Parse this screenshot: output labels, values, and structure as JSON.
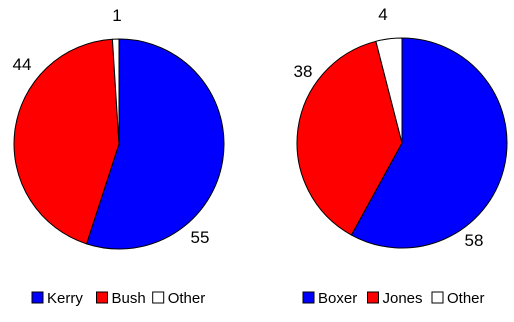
{
  "chart_data": [
    {
      "type": "pie",
      "series": [
        {
          "name": "Kerry",
          "value": 55,
          "color": "#0000ff"
        },
        {
          "name": "Bush",
          "value": 44,
          "color": "#ff0000"
        },
        {
          "name": "Other",
          "value": 1,
          "color": "#ffffff"
        }
      ],
      "legend": "bottom"
    },
    {
      "type": "pie",
      "series": [
        {
          "name": "Boxer",
          "value": 58,
          "color": "#0000ff"
        },
        {
          "name": "Jones",
          "value": 38,
          "color": "#ff0000"
        },
        {
          "name": "Other",
          "value": 4,
          "color": "#ffffff"
        }
      ],
      "legend": "bottom"
    }
  ]
}
